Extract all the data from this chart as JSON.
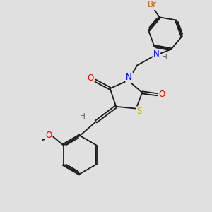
{
  "background_color": "#e0e0e0",
  "fig_size": [
    3.0,
    3.0
  ],
  "dpi": 100,
  "bond_color": "#1a1a1a",
  "atom_colors": {
    "N": "#0000ee",
    "O": "#ee0000",
    "S": "#bbbb00",
    "Br": "#cc6600",
    "H": "#555555",
    "C": "#1a1a1a"
  },
  "font_size_atoms": 8.5,
  "font_size_small": 7.5,
  "lw": 1.3
}
